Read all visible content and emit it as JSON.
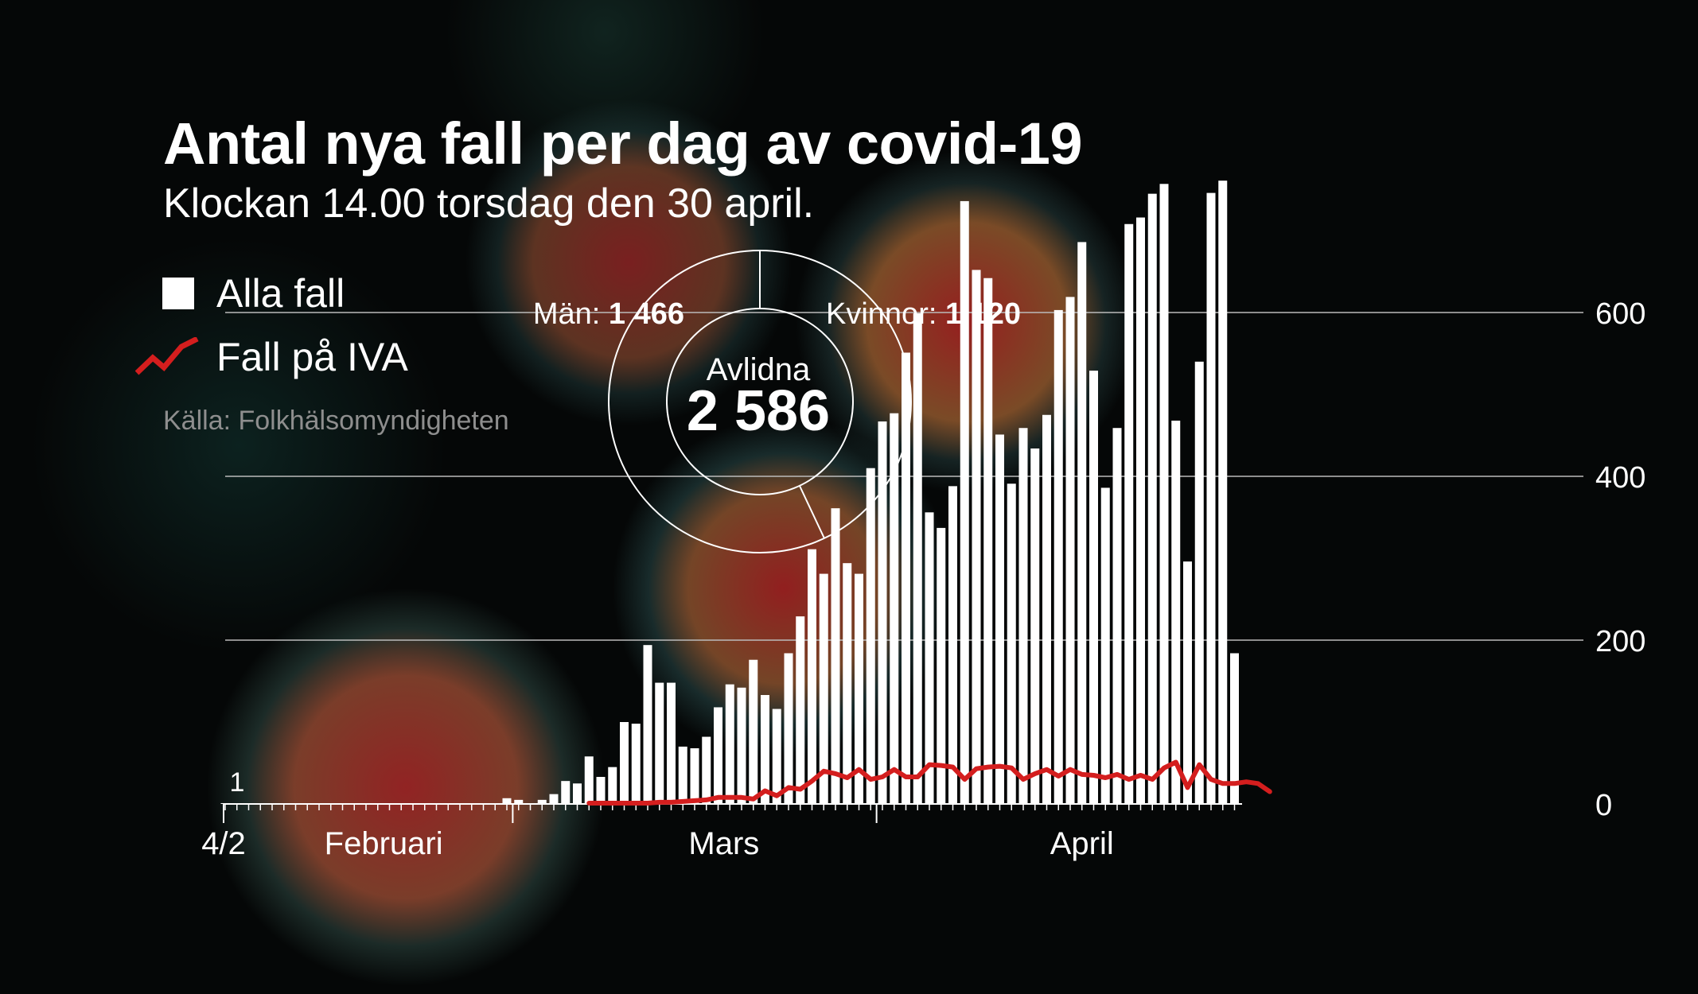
{
  "header": {
    "title": "Antal nya fall per dag av covid-19",
    "subtitle": "Klockan 14.00 torsdag den 30 april."
  },
  "legend": {
    "all_cases": "Alla fall",
    "icu_cases": "Fall på IVA"
  },
  "source": "Källa: Folkhälsomyndigheten",
  "deaths": {
    "label": "Avlidna",
    "total": "2 586",
    "men_label": "Män:",
    "men_value": "1 466",
    "women_label": "Kvinnor:",
    "women_value": "1 120"
  },
  "colors": {
    "bars": "#ffffff",
    "icu_line": "#d41e1e",
    "gridline": "#bbbbbb"
  },
  "chart_data": {
    "type": "bar",
    "title": "Antal nya fall per dag av covid-19",
    "ylim": [
      0,
      780
    ],
    "yticks": [
      0,
      200,
      400,
      600
    ],
    "grid": true,
    "x_start_label": "4/2",
    "month_labels": [
      {
        "label": "Februari",
        "day_index": 13.5
      },
      {
        "label": "Mars",
        "day_index": 42.5
      },
      {
        "label": "April",
        "day_index": 73
      }
    ],
    "month_boundaries": [
      25,
      56
    ],
    "first_value_label": "1",
    "series": [
      {
        "name": "Alla fall",
        "type": "bar",
        "start_index": 0,
        "values": [
          1,
          0,
          0,
          0,
          0,
          0,
          0,
          0,
          0,
          0,
          0,
          0,
          0,
          0,
          0,
          0,
          0,
          0,
          0,
          0,
          0,
          0,
          0,
          0,
          7,
          5,
          0,
          5,
          12,
          28,
          25,
          58,
          33,
          45,
          100,
          98,
          194,
          148,
          148,
          70,
          68,
          82,
          118,
          146,
          142,
          176,
          133,
          116,
          184,
          229,
          311,
          281,
          361,
          294,
          281,
          410,
          467,
          477,
          551,
          599,
          356,
          337,
          388,
          736,
          652,
          642,
          451,
          391,
          459,
          434,
          475,
          603,
          619,
          686,
          529,
          386,
          459,
          708,
          716,
          745,
          757,
          468,
          296,
          540,
          746,
          761,
          184
        ]
      },
      {
        "name": "Fall på IVA",
        "type": "line",
        "start_index": 31,
        "values": [
          1,
          1,
          1,
          1,
          1,
          1,
          2,
          2,
          3,
          4,
          5,
          8,
          8,
          8,
          6,
          16,
          10,
          20,
          18,
          28,
          40,
          37,
          32,
          42,
          30,
          33,
          42,
          33,
          33,
          48,
          47,
          45,
          30,
          43,
          45,
          46,
          44,
          30,
          37,
          42,
          34,
          42,
          36,
          35,
          32,
          36,
          30,
          35,
          30,
          44,
          51,
          20,
          48,
          30,
          25,
          25,
          27,
          25,
          15
        ]
      }
    ]
  }
}
